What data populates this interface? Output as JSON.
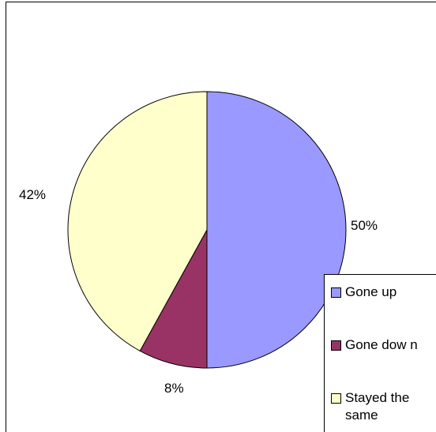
{
  "chart_data": {
    "type": "pie",
    "title": "",
    "categories": [
      "Gone up",
      "Gone dow n",
      "Stayed the\nsame"
    ],
    "values": [
      50,
      8,
      42
    ],
    "data_labels": [
      "50%",
      "8%",
      "42%"
    ],
    "colors": [
      "#9999ff",
      "#993366",
      "#ffffcc"
    ],
    "legend_position": "right",
    "start_angle": "12 o'clock",
    "direction": "clockwise"
  }
}
